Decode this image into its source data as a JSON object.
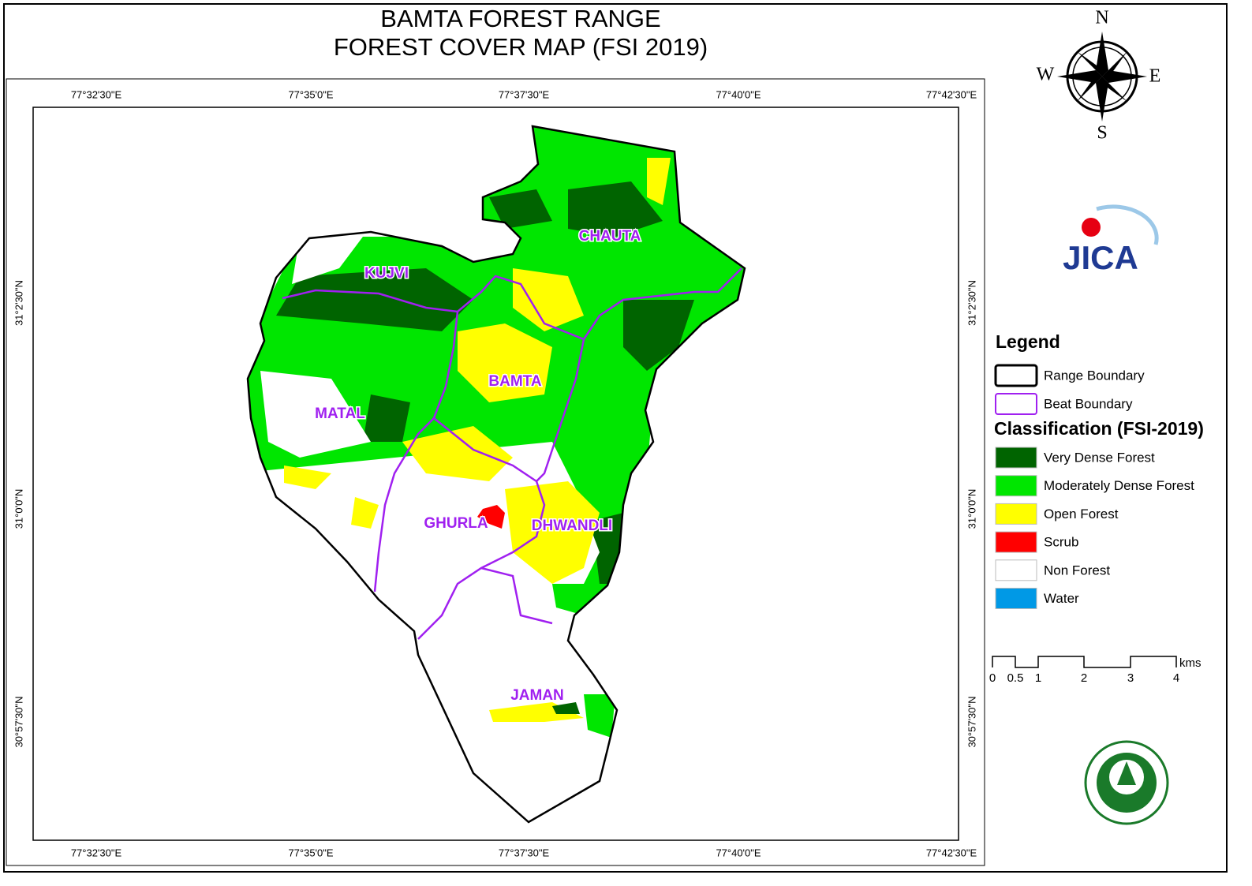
{
  "title": [
    "BAMTA FOREST RANGE",
    "FOREST COVER MAP (FSI 2019)"
  ],
  "compass": {
    "north": "N",
    "east": "E",
    "south": "S",
    "west": "W"
  },
  "logo": "JICA",
  "longitude_labels": [
    "77°32'30\"E",
    "77°35'0\"E",
    "77°37'30\"E",
    "77°40'0\"E",
    "77°42'30\"E"
  ],
  "latitude_labels": [
    "31°2'30\"N",
    "31°0'0\"N",
    "30°57'30\"N"
  ],
  "beats": [
    "KUJVI",
    "CHAUTA",
    "BAMTA",
    "MATAL",
    "GHURLA",
    "DHWANDLI",
    "JAMAN"
  ],
  "legend": {
    "title": "Legend",
    "boundaries": [
      {
        "label": "Range Boundary",
        "color": "#000000"
      },
      {
        "label": "Beat Boundary",
        "color": "#a020f0"
      }
    ],
    "classification_title": "Classification (FSI-2019)",
    "classes": [
      {
        "label": "Very Dense Forest",
        "color": "#006400"
      },
      {
        "label": "Moderately Dense Forest",
        "color": "#00e600"
      },
      {
        "label": "Open Forest",
        "color": "#ffff00"
      },
      {
        "label": "Scrub",
        "color": "#ff0000"
      },
      {
        "label": "Non Forest",
        "color": "#ffffff"
      },
      {
        "label": "Water",
        "color": "#0099e6"
      }
    ]
  },
  "scale": {
    "labels": [
      "0",
      "0.5",
      "1",
      "2",
      "3",
      "4"
    ],
    "unit": "kms"
  }
}
